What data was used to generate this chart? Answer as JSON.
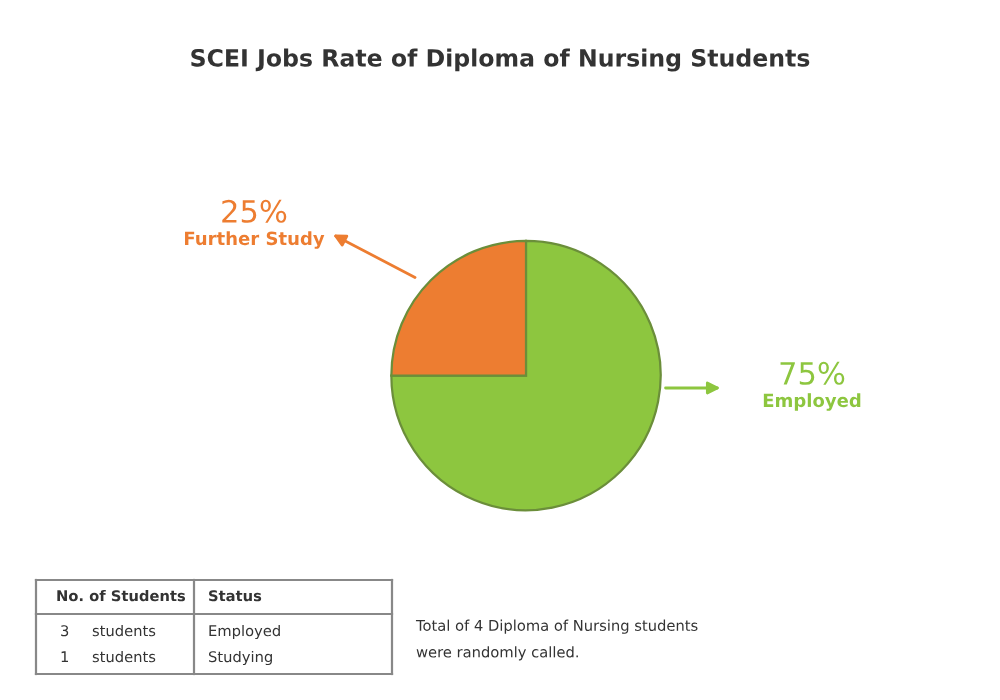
{
  "chart_data": {
    "type": "pie",
    "title": "SCEI Jobs Rate of Diploma of Nursing Students",
    "categories": [
      "Employed",
      "Further Study"
    ],
    "values": [
      75,
      25
    ],
    "value_labels": [
      "75%",
      "25%"
    ],
    "colors": [
      "#8dc63f",
      "#ed7d31"
    ],
    "annotations": [
      "No. of Students",
      "Status",
      "3",
      "students",
      "Employed",
      "1",
      "students",
      "Studying",
      "Total of 4 Diploma of Nursing students\nwere randomly called."
    ]
  }
}
